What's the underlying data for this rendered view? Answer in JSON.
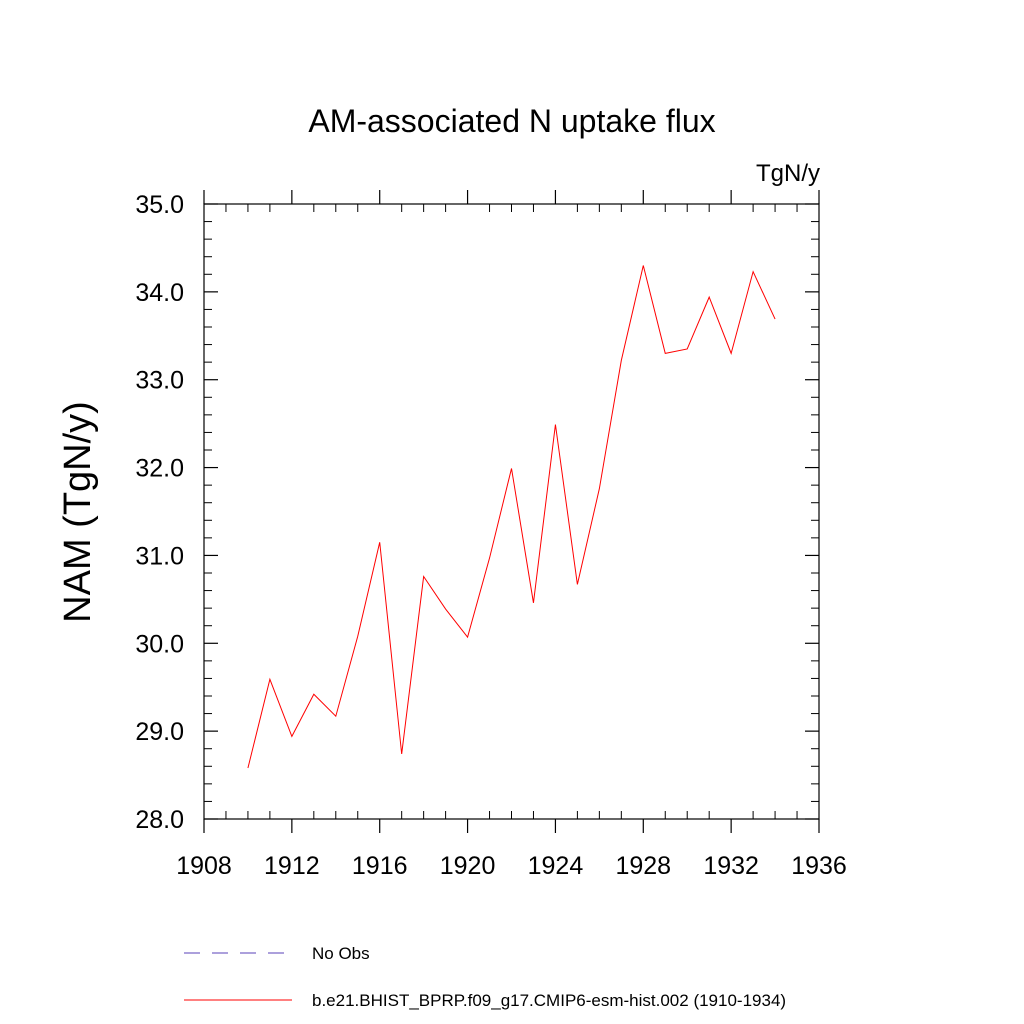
{
  "chart_data": {
    "type": "line",
    "title": "AM-associated N uptake flux",
    "units_label": "TgN/y",
    "xlabel": "",
    "ylabel": "NAM  (TgN/y)",
    "xlim": [
      1908,
      1936
    ],
    "ylim": [
      28.0,
      35.0
    ],
    "x_ticks": [
      1908,
      1912,
      1916,
      1920,
      1924,
      1928,
      1932,
      1936
    ],
    "x_tick_labels": [
      "1908",
      "1912",
      "1916",
      "1920",
      "1924",
      "1928",
      "1932",
      "1936"
    ],
    "y_ticks": [
      28,
      29,
      30,
      31,
      32,
      33,
      34,
      35
    ],
    "y_tick_labels": [
      "28.0",
      "29.0",
      "30.0",
      "31.0",
      "32.0",
      "33.0",
      "34.0",
      "35.0"
    ],
    "grid": false,
    "legend_position": "bottom",
    "series": [
      {
        "name": "No Obs",
        "color": "#7b68c8",
        "style": "dashed",
        "x": [],
        "values": []
      },
      {
        "name": "b.e21.BHIST_BPRP.f09_g17.CMIP6-esm-hist.002 (1910-1934)",
        "color": "#ff0000",
        "style": "solid",
        "x": [
          1910,
          1911,
          1912,
          1913,
          1914,
          1915,
          1916,
          1917,
          1918,
          1919,
          1920,
          1921,
          1922,
          1923,
          1924,
          1925,
          1926,
          1927,
          1928,
          1929,
          1930,
          1931,
          1932,
          1933,
          1934
        ],
        "values": [
          28.58,
          29.59,
          28.94,
          29.42,
          29.17,
          30.08,
          31.15,
          28.74,
          30.76,
          30.39,
          30.07,
          30.97,
          31.99,
          30.46,
          32.49,
          30.67,
          31.76,
          33.22,
          34.3,
          33.3,
          33.35,
          33.94,
          33.3,
          34.23,
          33.69
        ]
      }
    ]
  }
}
